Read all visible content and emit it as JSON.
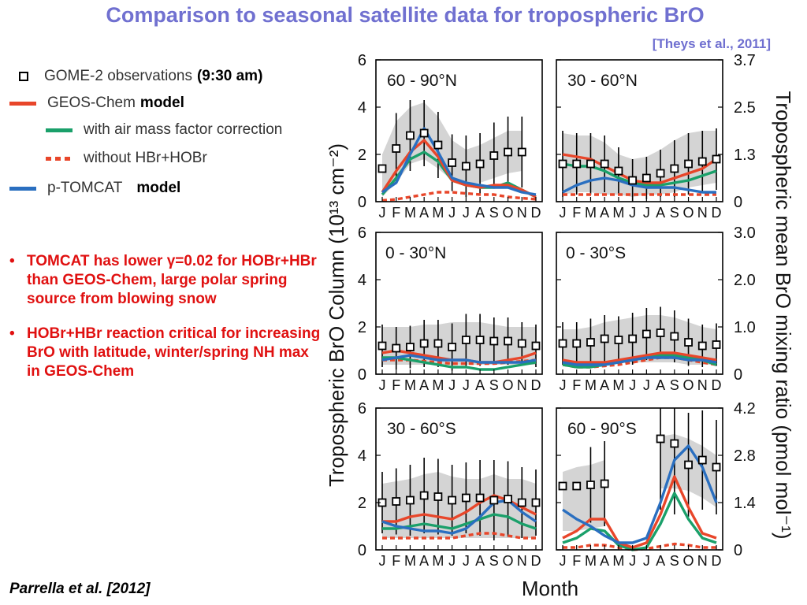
{
  "slide": {
    "title": "Comparison to seasonal satellite data for tropospheric BrO",
    "ref_top": "[Theys et al., 2011]",
    "ref_bottom": "Parrella et al. [2012]"
  },
  "legend": {
    "items": [
      {
        "label": "GOME-2 observations",
        "extra": "(9:30 am)",
        "style": "square",
        "color": "#000000"
      },
      {
        "label": "GEOS-Chem",
        "extra": "model",
        "style": "solid",
        "color": "#e8462a"
      },
      {
        "label": "with air mass factor correction",
        "extra": "",
        "style": "solid",
        "color": "#1aa06a"
      },
      {
        "label": "without HBr+HOBr",
        "extra": "",
        "style": "dashed",
        "color": "#e8462a"
      },
      {
        "label": "p-TOMCAT",
        "extra": "model",
        "style": "solid",
        "color": "#2a6fc0"
      }
    ]
  },
  "bullets": [
    {
      "marker": "•",
      "text": "TOMCAT has lower γ=0.02 for HOBr+HBr than GEOS-Chem, large polar spring source from blowing snow"
    },
    {
      "marker": "•",
      "text": "HOBr+HBr  reaction critical for increasing BrO with latitude, winter/spring NH max in GEOS-Chem"
    }
  ],
  "chart_data": {
    "type": "line",
    "xlabel": "Month",
    "ylabel_left": "Tropospheric BrO Column (10¹³ cm⁻²)",
    "ylabel_right": "Tropospheric mean BrO mixing ratio  (pmol mol⁻¹)",
    "months": [
      "J",
      "F",
      "M",
      "A",
      "M",
      "J",
      "J",
      "A",
      "S",
      "O",
      "N",
      "D"
    ],
    "left_yticks": [
      0,
      2,
      4,
      6
    ],
    "ylim": [
      0,
      6
    ],
    "colors": {
      "obs": "#000000",
      "geos": "#e8462a",
      "amf": "#1aa06a",
      "nohbr": "#e8462a",
      "tomcat": "#2a6fc0",
      "band": "#d4d4d4"
    },
    "panels": [
      {
        "label": "60 - 90°N",
        "right_ticks": [
          "3.7",
          "2.5",
          "1.3",
          "0"
        ],
        "band_lo": [
          0.2,
          0.8,
          1.6,
          1.8,
          1.4,
          0.9,
          0.8,
          0.8,
          1.0,
          1.2,
          1.3,
          null
        ],
        "band_hi": [
          2.0,
          3.4,
          4.0,
          4.2,
          3.6,
          2.6,
          2.2,
          2.4,
          2.7,
          3.0,
          3.0,
          null
        ],
        "obs": [
          1.4,
          2.25,
          2.8,
          2.9,
          2.4,
          1.65,
          1.5,
          1.6,
          1.95,
          2.1,
          2.1,
          null
        ],
        "err": [
          null,
          1.5,
          1.5,
          1.4,
          1.4,
          1.2,
          1.3,
          1.3,
          1.4,
          1.5,
          1.5,
          null
        ],
        "geos": [
          0.4,
          1.3,
          2.1,
          2.6,
          1.9,
          0.9,
          0.7,
          0.6,
          0.7,
          0.7,
          0.5,
          0.2
        ],
        "amf": [
          0.3,
          1.0,
          1.8,
          2.1,
          1.7,
          0.9,
          0.7,
          0.6,
          0.6,
          0.8,
          0.5,
          0.2
        ],
        "nohbr": [
          0.05,
          0.1,
          0.2,
          0.3,
          0.4,
          0.4,
          0.35,
          0.3,
          0.3,
          0.2,
          0.15,
          0.1
        ],
        "tomcat": [
          0.4,
          0.8,
          2.0,
          3.1,
          2.1,
          1.0,
          0.8,
          0.7,
          0.6,
          0.6,
          0.4,
          0.3
        ]
      },
      {
        "label": "30 - 60°N",
        "right_ticks": [
          "3.7",
          "2.5",
          "1.3",
          "0"
        ],
        "band_lo": [
          0.3,
          0.4,
          0.4,
          0.3,
          0.3,
          0.2,
          0.3,
          0.3,
          0.4,
          0.6,
          0.7,
          0.8
        ],
        "band_hi": [
          2.9,
          2.8,
          2.8,
          2.5,
          2.0,
          1.8,
          1.9,
          2.2,
          2.6,
          2.9,
          3.0,
          3.0
        ],
        "obs": [
          1.6,
          1.6,
          1.6,
          1.6,
          1.3,
          0.9,
          1.0,
          1.2,
          1.4,
          1.6,
          1.7,
          1.8
        ],
        "err": [
          1.4,
          1.3,
          1.3,
          1.2,
          1.0,
          0.9,
          0.9,
          1.0,
          1.2,
          1.3,
          1.3,
          1.3
        ],
        "geos": [
          2.0,
          1.9,
          1.8,
          1.5,
          1.2,
          0.9,
          0.8,
          0.8,
          1.0,
          1.2,
          1.4,
          1.8
        ],
        "amf": [
          1.6,
          1.5,
          1.5,
          1.3,
          1.0,
          0.8,
          0.7,
          0.7,
          0.8,
          0.9,
          1.1,
          1.3
        ],
        "nohbr": [
          0.3,
          0.3,
          0.3,
          0.3,
          0.3,
          0.3,
          0.3,
          0.3,
          0.3,
          0.3,
          0.3,
          0.3
        ],
        "tomcat": [
          0.4,
          0.7,
          0.9,
          1.0,
          0.9,
          0.7,
          0.6,
          0.6,
          0.6,
          0.5,
          0.4,
          0.4
        ]
      },
      {
        "label": "0 - 30°N",
        "right_ticks": [
          "3.0",
          "2.0",
          "1.0",
          "0"
        ],
        "band_lo": [
          0.4,
          0.4,
          0.4,
          0.4,
          0.4,
          0.4,
          0.4,
          0.4,
          0.4,
          0.4,
          0.4,
          0.4
        ],
        "band_hi": [
          2.0,
          2.0,
          2.0,
          2.1,
          2.1,
          2.2,
          2.2,
          2.2,
          2.1,
          2.0,
          2.0,
          2.0
        ],
        "obs": [
          1.2,
          1.1,
          1.15,
          1.3,
          1.3,
          1.15,
          1.45,
          1.45,
          1.4,
          1.4,
          1.3,
          1.2
        ],
        "err": [
          0.9,
          0.9,
          0.9,
          1.0,
          1.0,
          1.0,
          1.1,
          1.1,
          1.0,
          1.0,
          0.9,
          0.9
        ],
        "geos": [
          0.9,
          1.0,
          0.9,
          0.8,
          0.7,
          0.6,
          0.6,
          0.5,
          0.5,
          0.6,
          0.7,
          0.9
        ],
        "amf": [
          0.7,
          0.7,
          0.6,
          0.5,
          0.4,
          0.3,
          0.3,
          0.2,
          0.2,
          0.3,
          0.4,
          0.5
        ],
        "nohbr": [
          0.6,
          0.6,
          0.6,
          0.55,
          0.5,
          0.45,
          0.45,
          0.45,
          0.45,
          0.5,
          0.55,
          0.6
        ],
        "tomcat": [
          0.6,
          0.7,
          0.8,
          0.7,
          0.6,
          0.6,
          0.6,
          0.5,
          0.5,
          0.5,
          0.5,
          0.6
        ]
      },
      {
        "label": "0 - 30°S",
        "right_ticks": [
          "3.0",
          "2.0",
          "1.0",
          "0"
        ],
        "band_lo": [
          0.4,
          0.4,
          0.4,
          0.4,
          0.5,
          0.5,
          0.5,
          0.5,
          0.5,
          0.4,
          0.4,
          0.4
        ],
        "band_hi": [
          1.9,
          1.9,
          2.0,
          2.2,
          2.3,
          2.4,
          2.5,
          2.5,
          2.4,
          2.2,
          2.0,
          1.9
        ],
        "obs": [
          1.3,
          1.3,
          1.35,
          1.5,
          1.45,
          1.5,
          1.7,
          1.75,
          1.6,
          1.35,
          1.2,
          1.25
        ],
        "err": [
          0.9,
          0.9,
          1.0,
          1.0,
          1.0,
          1.1,
          1.1,
          1.1,
          1.1,
          1.0,
          0.9,
          0.9
        ],
        "geos": [
          0.6,
          0.5,
          0.5,
          0.5,
          0.6,
          0.7,
          0.8,
          0.9,
          0.9,
          0.8,
          0.7,
          0.6
        ],
        "amf": [
          0.4,
          0.3,
          0.3,
          0.4,
          0.5,
          0.6,
          0.7,
          0.8,
          0.8,
          0.7,
          0.6,
          0.4
        ],
        "nohbr": [
          0.4,
          0.3,
          0.3,
          0.35,
          0.4,
          0.5,
          0.6,
          0.7,
          0.7,
          0.6,
          0.5,
          0.4
        ],
        "tomcat": [
          0.5,
          0.4,
          0.4,
          0.4,
          0.5,
          0.6,
          0.7,
          0.7,
          0.7,
          0.6,
          0.6,
          0.5
        ]
      },
      {
        "label": "30 - 60°S",
        "right_ticks": [
          "4.2",
          "2.8",
          "1.4",
          "0"
        ],
        "band_lo": [
          0.5,
          0.5,
          0.5,
          0.5,
          0.5,
          0.5,
          0.5,
          0.5,
          0.5,
          0.5,
          0.5,
          0.5
        ],
        "band_hi": [
          2.8,
          2.9,
          3.0,
          3.2,
          3.3,
          3.1,
          3.0,
          3.0,
          3.2,
          3.0,
          3.0,
          2.8
        ],
        "obs": [
          2.0,
          2.05,
          2.1,
          2.3,
          2.25,
          2.1,
          2.2,
          2.2,
          2.1,
          2.15,
          2.0,
          2.0
        ],
        "err": [
          1.3,
          1.4,
          1.5,
          1.6,
          1.6,
          1.5,
          1.5,
          1.6,
          1.7,
          1.6,
          1.5,
          1.4
        ],
        "geos": [
          1.2,
          1.2,
          1.4,
          1.5,
          1.4,
          1.3,
          1.6,
          2.0,
          2.3,
          2.1,
          1.8,
          1.5
        ],
        "amf": [
          0.9,
          0.9,
          1.0,
          1.1,
          1.0,
          0.9,
          1.1,
          1.3,
          1.5,
          1.4,
          1.1,
          0.9
        ],
        "nohbr": [
          0.5,
          0.5,
          0.5,
          0.5,
          0.5,
          0.5,
          0.6,
          0.7,
          0.7,
          0.6,
          0.5,
          0.5
        ],
        "tomcat": [
          1.2,
          1.0,
          0.9,
          0.8,
          0.8,
          0.7,
          0.9,
          1.4,
          2.0,
          2.1,
          1.6,
          1.2
        ]
      },
      {
        "label": "60 - 90°S",
        "right_ticks": [
          "4.2",
          "2.8",
          "1.4",
          "0"
        ],
        "band_lo": [
          0.8,
          0.8,
          0.9,
          1.0,
          null,
          null,
          null,
          2.6,
          2.6,
          2.5,
          2.2,
          1.8
        ],
        "band_hi": [
          3.3,
          3.5,
          3.6,
          3.8,
          null,
          null,
          null,
          4.8,
          4.9,
          4.7,
          4.4,
          4.0
        ],
        "obs": [
          2.7,
          2.7,
          2.75,
          2.8,
          null,
          null,
          null,
          4.7,
          4.5,
          3.6,
          3.8,
          3.5
        ],
        "err": [
          null,
          null,
          1.6,
          1.8,
          null,
          null,
          null,
          3.0,
          3.0,
          2.2,
          2.1,
          2.0
        ],
        "geos": [
          0.5,
          0.8,
          1.3,
          1.3,
          0.3,
          0.1,
          0.3,
          1.5,
          3.1,
          1.8,
          0.7,
          0.5
        ],
        "amf": [
          0.3,
          0.5,
          0.9,
          0.8,
          0.2,
          0.0,
          0.1,
          1.1,
          2.4,
          1.3,
          0.5,
          0.3
        ],
        "nohbr": [
          0.1,
          0.1,
          0.2,
          0.2,
          0.1,
          0.0,
          0.05,
          0.15,
          0.25,
          0.2,
          0.1,
          0.1
        ],
        "tomcat": [
          1.7,
          1.3,
          1.0,
          0.6,
          0.3,
          0.3,
          0.5,
          2.0,
          3.8,
          4.4,
          3.5,
          2.0
        ]
      }
    ]
  }
}
